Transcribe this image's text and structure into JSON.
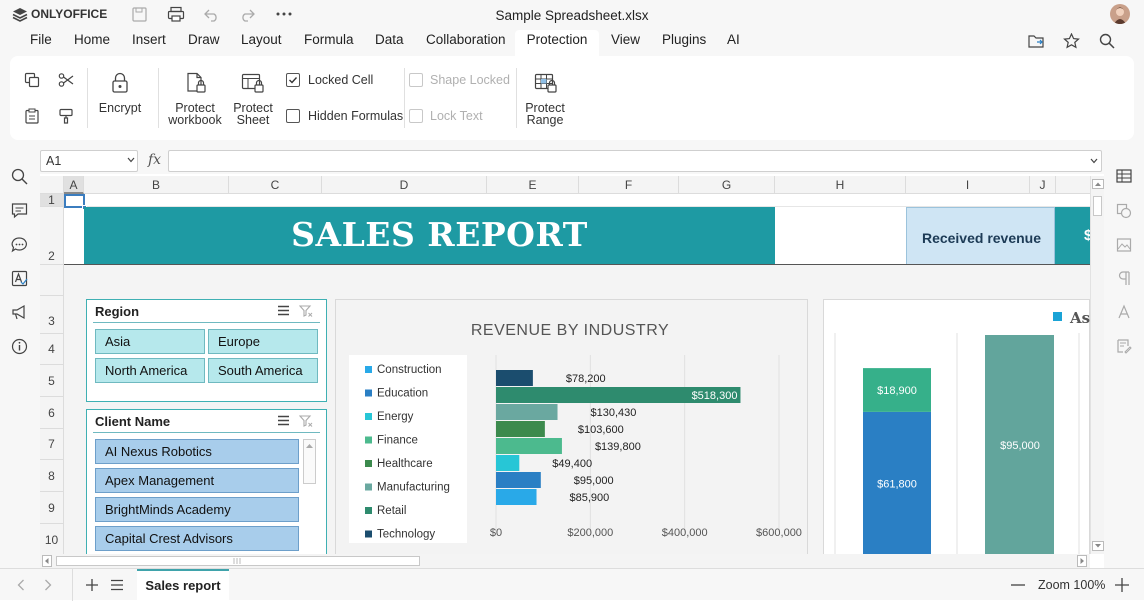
{
  "app": {
    "brand": "ONLYOFFICE",
    "doc_title": "Sample Spreadsheet.xlsx"
  },
  "menu": [
    "File",
    "Home",
    "Insert",
    "Draw",
    "Layout",
    "Formula",
    "Data",
    "Collaboration",
    "Protection",
    "View",
    "Plugins",
    "AI"
  ],
  "ribbon": {
    "encrypt": "Encrypt",
    "protect_workbook": "Protect workbook",
    "protect_sheet": "Protect Sheet",
    "locked_cell": "Locked Cell",
    "hidden_formulas": "Hidden Formulas",
    "shape_locked": "Shape Locked",
    "lock_text": "Lock Text",
    "protect_range": "Protect Range",
    "locked_cell_checked": true,
    "hidden_formulas_checked": false,
    "shape_locked_checked": false,
    "lock_text_checked": false
  },
  "formula": {
    "cell_ref": "A1",
    "fx": "fx",
    "value": ""
  },
  "columns": [
    "A",
    "B",
    "C",
    "D",
    "E",
    "F",
    "G",
    "H",
    "I",
    "J"
  ],
  "rows": [
    "1",
    "2",
    "3",
    "4",
    "5",
    "6",
    "7",
    "8",
    "9",
    "10"
  ],
  "sheet": {
    "banner_title": "SALES REPORT",
    "received_revenue": "Received revenue",
    "partial": "$"
  },
  "slicer_region": {
    "title": "Region",
    "items": [
      "Asia",
      "Europe",
      "North America",
      "South America"
    ]
  },
  "slicer_client": {
    "title": "Client Name",
    "items": [
      "AI Nexus Robotics",
      "Apex Management",
      "BrightMinds Academy",
      "Capital Crest Advisors"
    ]
  },
  "chart_data": [
    {
      "type": "bar",
      "orientation": "horizontal",
      "title": "REVENUE BY INDUSTRY",
      "categories": [
        "Technology",
        "Retail",
        "Manufacturing",
        "Healthcare",
        "Finance",
        "Energy",
        "Education",
        "Construction"
      ],
      "values": [
        78200,
        518300,
        130430,
        103600,
        139800,
        49400,
        95000,
        85900
      ],
      "value_labels": [
        "$78,200",
        "$518,300",
        "$130,430",
        "$103,600",
        "$139,800",
        "$49,400",
        "$95,000",
        "$85,900"
      ],
      "bar_colors": [
        "#1b4d6e",
        "#2e8b6e",
        "#6aa8a0",
        "#3c8a4d",
        "#4cba8e",
        "#27c6d6",
        "#2a7fc4",
        "#29a9e8"
      ],
      "legend": [
        "Construction",
        "Education",
        "Energy",
        "Finance",
        "Healthcare",
        "Manufacturing",
        "Retail",
        "Technology"
      ],
      "legend_colors": [
        "#29a9e8",
        "#2a7fc4",
        "#27c6d6",
        "#4cba8e",
        "#3c8a4d",
        "#6aa8a0",
        "#2e8b6e",
        "#1b4d6e"
      ],
      "xticks": [
        "$0",
        "$200,000",
        "$400,000",
        "$600,000"
      ],
      "xlim": [
        0,
        600000
      ],
      "legend_position": "left"
    },
    {
      "type": "bar",
      "stacked": true,
      "legend": [
        "As"
      ],
      "legend_colors": [
        "#1aa3d6"
      ],
      "series": [
        {
          "values": [
            61800
          ]
        },
        {
          "values": [
            18900
          ]
        },
        {
          "values": [
            95000
          ]
        }
      ],
      "value_labels": [
        "$61,800",
        "$18,900",
        "$95,000"
      ],
      "colors": [
        "#2a7fc4",
        "#36b08a",
        "#62a59c"
      ]
    }
  ],
  "status": {
    "sheet_tab": "Sales report",
    "zoom": "Zoom 100%"
  }
}
